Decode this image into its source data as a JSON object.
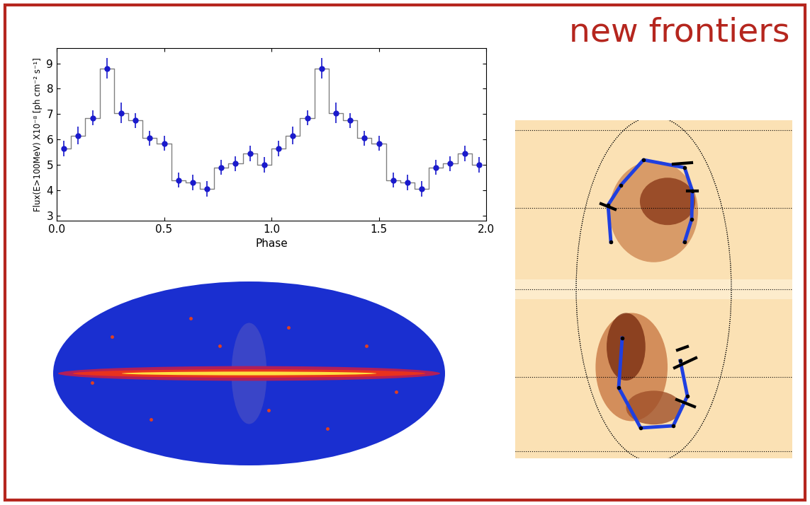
{
  "title": "new frontiers",
  "chart_data": {
    "type": "line",
    "x": [
      0.033,
      0.1,
      0.167,
      0.233,
      0.3,
      0.367,
      0.433,
      0.5,
      0.567,
      0.633,
      0.7,
      0.767,
      0.833,
      0.9,
      0.967,
      1.033,
      1.1,
      1.167,
      1.233,
      1.3,
      1.367,
      1.433,
      1.5,
      1.567,
      1.633,
      1.7,
      1.767,
      1.833,
      1.9,
      1.967
    ],
    "values": [
      5.65,
      6.15,
      6.85,
      8.8,
      7.05,
      6.75,
      6.05,
      5.85,
      4.4,
      4.3,
      4.05,
      4.9,
      5.05,
      5.45,
      5.0,
      5.65,
      6.15,
      6.85,
      8.8,
      7.05,
      6.75,
      6.05,
      5.85,
      4.4,
      4.3,
      4.05,
      4.9,
      5.05,
      5.45,
      5.0
    ],
    "errors": [
      0.3,
      0.35,
      0.3,
      0.4,
      0.4,
      0.3,
      0.3,
      0.3,
      0.3,
      0.3,
      0.3,
      0.3,
      0.3,
      0.3,
      0.3,
      0.3,
      0.35,
      0.3,
      0.4,
      0.4,
      0.3,
      0.3,
      0.3,
      0.3,
      0.3,
      0.3,
      0.3,
      0.3,
      0.3,
      0.3
    ],
    "color": "#1a1acc",
    "marker": "o",
    "line_style": "steps",
    "x_label": "Phase",
    "y_label": "Flux(E>100MeV) X10⁻⁸ [ph cm⁻² s⁻¹]",
    "xlim": [
      0,
      2
    ],
    "xticks": [
      {
        "value": 0,
        "label": "0.0"
      },
      {
        "value": 0.5,
        "label": "0.5"
      },
      {
        "value": 1,
        "label": "1.0"
      },
      {
        "value": 1.5,
        "label": "1.5"
      },
      {
        "value": 2,
        "label": "2.0"
      }
    ],
    "ylim": [
      2.8,
      9.6
    ],
    "yticks": [
      3,
      4,
      5,
      6,
      7,
      8,
      9
    ]
  }
}
